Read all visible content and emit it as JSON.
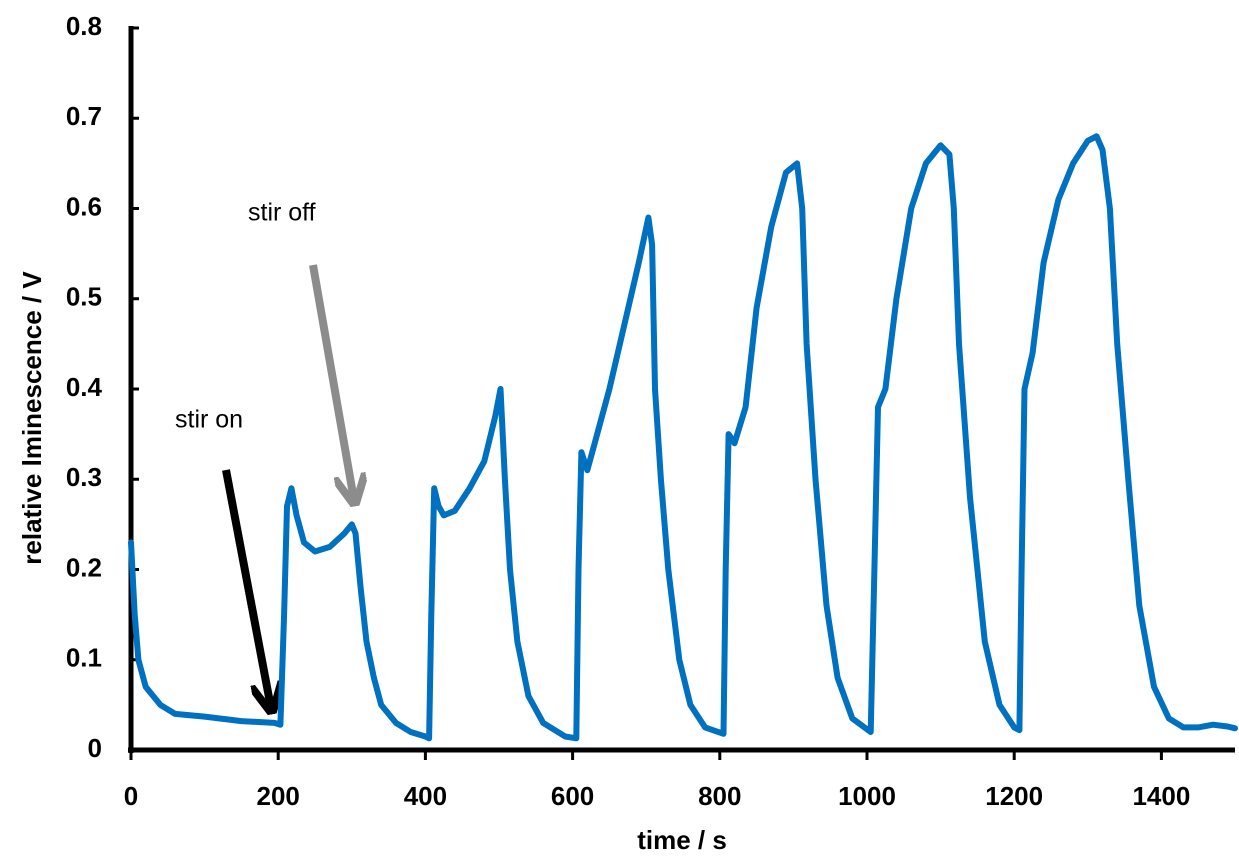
{
  "chart_data": {
    "type": "line",
    "xlabel": "time / s",
    "ylabel": "relative lminescence / V",
    "color": "#0070c0",
    "xlim": [
      0,
      1500
    ],
    "ylim": [
      0,
      0.8
    ],
    "xticks": [
      0,
      200,
      400,
      600,
      800,
      1000,
      1200,
      1400
    ],
    "yticks": [
      0,
      0.1,
      0.2,
      0.3,
      0.4,
      0.5,
      0.6,
      0.7,
      0.8
    ],
    "annotations": [
      "stir on",
      "stir off"
    ],
    "x": [
      0,
      5,
      10,
      20,
      40,
      60,
      100,
      150,
      195,
      203,
      208,
      212,
      218,
      225,
      235,
      250,
      270,
      290,
      300,
      305,
      312,
      320,
      330,
      340,
      360,
      380,
      400,
      405,
      408,
      412,
      418,
      425,
      440,
      460,
      480,
      495,
      502,
      508,
      515,
      525,
      540,
      560,
      590,
      605,
      608,
      612,
      620,
      630,
      650,
      670,
      690,
      703,
      708,
      712,
      720,
      730,
      745,
      760,
      780,
      805,
      808,
      812,
      820,
      835,
      850,
      870,
      890,
      905,
      912,
      918,
      930,
      945,
      960,
      980,
      1005,
      1010,
      1015,
      1025,
      1040,
      1060,
      1080,
      1100,
      1112,
      1118,
      1125,
      1140,
      1160,
      1180,
      1200,
      1207,
      1210,
      1214,
      1225,
      1240,
      1260,
      1280,
      1300,
      1312,
      1320,
      1330,
      1340,
      1355,
      1370,
      1390,
      1410,
      1430,
      1450,
      1470,
      1490,
      1500
    ],
    "values": [
      0.23,
      0.15,
      0.1,
      0.07,
      0.05,
      0.04,
      0.037,
      0.032,
      0.03,
      0.028,
      0.15,
      0.27,
      0.29,
      0.26,
      0.23,
      0.22,
      0.225,
      0.24,
      0.25,
      0.24,
      0.18,
      0.12,
      0.08,
      0.05,
      0.03,
      0.02,
      0.015,
      0.013,
      0.15,
      0.29,
      0.27,
      0.26,
      0.265,
      0.29,
      0.32,
      0.37,
      0.4,
      0.3,
      0.2,
      0.12,
      0.06,
      0.03,
      0.015,
      0.013,
      0.2,
      0.33,
      0.31,
      0.34,
      0.4,
      0.47,
      0.54,
      0.59,
      0.56,
      0.4,
      0.3,
      0.2,
      0.1,
      0.05,
      0.025,
      0.018,
      0.2,
      0.35,
      0.34,
      0.38,
      0.49,
      0.58,
      0.64,
      0.65,
      0.6,
      0.45,
      0.3,
      0.16,
      0.08,
      0.035,
      0.02,
      0.2,
      0.38,
      0.4,
      0.5,
      0.6,
      0.65,
      0.67,
      0.66,
      0.6,
      0.45,
      0.28,
      0.12,
      0.05,
      0.025,
      0.022,
      0.2,
      0.4,
      0.44,
      0.54,
      0.61,
      0.65,
      0.675,
      0.68,
      0.665,
      0.6,
      0.45,
      0.3,
      0.16,
      0.07,
      0.035,
      0.025,
      0.025,
      0.028,
      0.026,
      0.024
    ]
  }
}
